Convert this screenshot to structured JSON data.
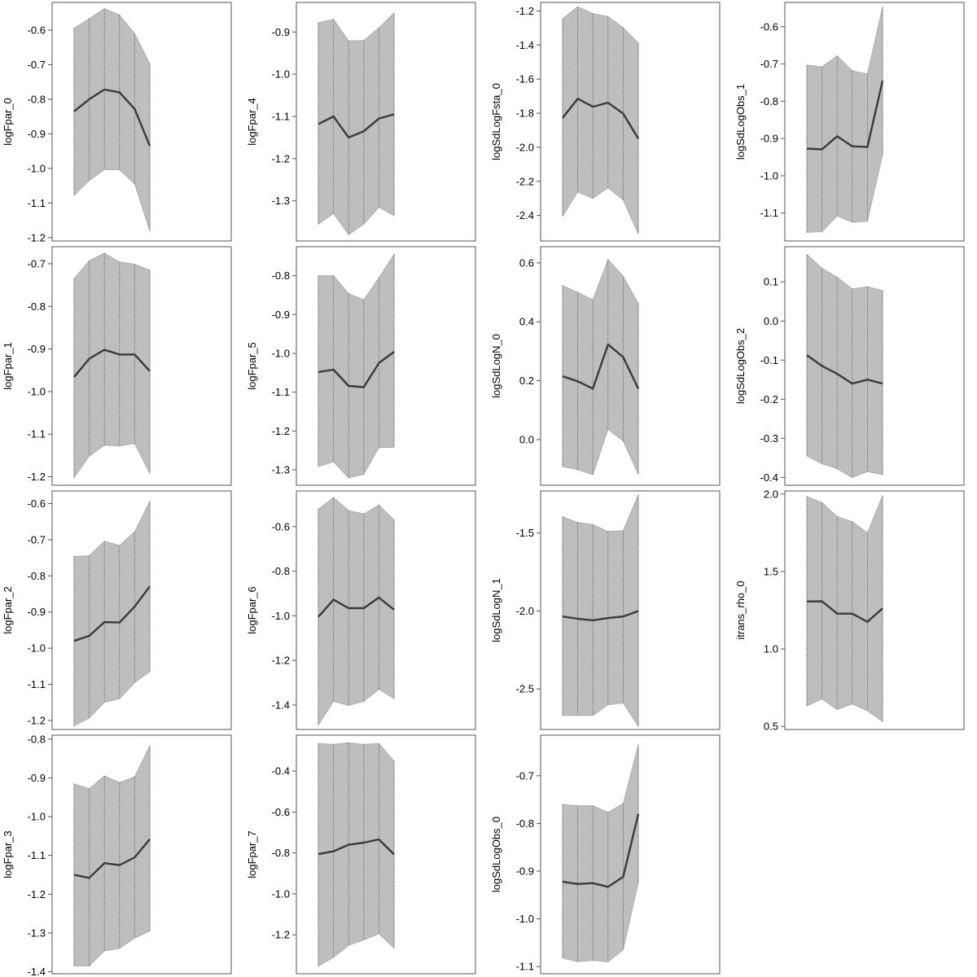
{
  "colors": {
    "band": "#bebebe",
    "band_edge": "#a8a8a8",
    "line": "#3a3a3a",
    "frame": "#555555",
    "ribbon": "#5a5a5a"
  },
  "chart_data": [
    {
      "type": "line",
      "ylabel": "logFpar_0",
      "x": [
        1,
        2,
        3,
        4,
        5,
        6
      ],
      "mean": [
        -0.835,
        -0.8,
        -0.772,
        -0.78,
        -0.828,
        -0.935
      ],
      "upper": [
        -0.595,
        -0.567,
        -0.538,
        -0.556,
        -0.61,
        -0.697
      ],
      "lower": [
        -1.078,
        -1.035,
        -1.004,
        -1.004,
        -1.045,
        -1.182
      ],
      "yticks": [
        -0.6,
        -0.7,
        -0.8,
        -0.9,
        -1.0,
        -1.1,
        -1.2
      ],
      "tick_labels": [
        "-0.6",
        "-0.7",
        "-0.8",
        "-0.9",
        "-1.0",
        "-1.1",
        "-1.2"
      ],
      "ylim": [
        -1.21,
        -0.52
      ]
    },
    {
      "type": "line",
      "ylabel": "logFpar_4",
      "x": [
        1,
        2,
        3,
        4,
        5,
        6
      ],
      "mean": [
        -1.118,
        -1.1,
        -1.15,
        -1.135,
        -1.105,
        -1.095
      ],
      "upper": [
        -0.878,
        -0.87,
        -0.921,
        -0.92,
        -0.89,
        -0.855
      ],
      "lower": [
        -1.355,
        -1.33,
        -1.38,
        -1.355,
        -1.315,
        -1.335
      ],
      "yticks": [
        -0.9,
        -1.0,
        -1.1,
        -1.2,
        -1.3
      ],
      "tick_labels": [
        "-0.9",
        "-1.0",
        "-1.1",
        "-1.2",
        "-1.3"
      ],
      "ylim": [
        -1.395,
        -0.83
      ]
    },
    {
      "type": "line",
      "ylabel": "logSdLogFsta_0",
      "x": [
        1,
        2,
        3,
        4,
        5,
        6
      ],
      "mean": [
        -1.828,
        -1.715,
        -1.762,
        -1.738,
        -1.802,
        -1.95
      ],
      "upper": [
        -1.245,
        -1.175,
        -1.215,
        -1.232,
        -1.298,
        -1.388
      ],
      "lower": [
        -2.405,
        -2.262,
        -2.3,
        -2.238,
        -2.31,
        -2.508
      ],
      "yticks": [
        -1.2,
        -1.4,
        -1.6,
        -1.8,
        -2.0,
        -2.2,
        -2.4
      ],
      "tick_labels": [
        "-1.2",
        "-1.4",
        "-1.6",
        "-1.8",
        "-2.0",
        "-2.2",
        "-2.4"
      ],
      "ylim": [
        -2.55,
        -1.15
      ]
    },
    {
      "type": "line",
      "ylabel": "logSdLogObs_1",
      "x": [
        1,
        2,
        3,
        4,
        5,
        6
      ],
      "mean": [
        -0.927,
        -0.929,
        -0.894,
        -0.921,
        -0.923,
        -0.745
      ],
      "upper": [
        -0.703,
        -0.708,
        -0.678,
        -0.718,
        -0.727,
        -0.547
      ],
      "lower": [
        -1.152,
        -1.15,
        -1.108,
        -1.125,
        -1.122,
        -0.945
      ],
      "yticks": [
        -0.6,
        -0.7,
        -0.8,
        -0.9,
        -1.0,
        -1.1
      ],
      "tick_labels": [
        "-0.6",
        "-0.7",
        "-0.8",
        "-0.9",
        "-1.0",
        "-1.1"
      ],
      "ylim": [
        -1.175,
        -0.535
      ]
    },
    {
      "type": "line",
      "ylabel": "logFpar_1",
      "x": [
        1,
        2,
        3,
        4,
        5,
        6
      ],
      "mean": [
        -0.966,
        -0.923,
        -0.902,
        -0.913,
        -0.913,
        -0.952
      ],
      "upper": [
        -0.735,
        -0.693,
        -0.675,
        -0.696,
        -0.701,
        -0.715
      ],
      "lower": [
        -1.202,
        -1.152,
        -1.126,
        -1.128,
        -1.122,
        -1.192
      ],
      "yticks": [
        -0.7,
        -0.8,
        -0.9,
        -1.0,
        -1.1,
        -1.2
      ],
      "tick_labels": [
        "-0.7",
        "-0.8",
        "-0.9",
        "-1.0",
        "-1.1",
        "-1.2"
      ],
      "ylim": [
        -1.22,
        -0.66
      ]
    },
    {
      "type": "line",
      "ylabel": "logFpar_5",
      "x": [
        1,
        2,
        3,
        4,
        5,
        6
      ],
      "mean": [
        -1.048,
        -1.042,
        -1.084,
        -1.087,
        -1.025,
        -0.996
      ],
      "upper": [
        -0.8,
        -0.8,
        -0.846,
        -0.862,
        -0.805,
        -0.745
      ],
      "lower": [
        -1.292,
        -1.28,
        -1.321,
        -1.312,
        -1.243,
        -1.242
      ],
      "yticks": [
        -0.8,
        -0.9,
        -1.0,
        -1.1,
        -1.2,
        -1.3
      ],
      "tick_labels": [
        "-0.8",
        "-0.9",
        "-1.0",
        "-1.1",
        "-1.2",
        "-1.3"
      ],
      "ylim": [
        -1.34,
        -0.725
      ]
    },
    {
      "type": "line",
      "ylabel": "logSdLogN_0",
      "x": [
        1,
        2,
        3,
        4,
        5,
        6
      ],
      "mean": [
        0.215,
        0.198,
        0.173,
        0.323,
        0.28,
        0.173
      ],
      "upper": [
        0.523,
        0.5,
        0.475,
        0.612,
        0.555,
        0.463
      ],
      "lower": [
        -0.092,
        -0.102,
        -0.12,
        0.035,
        -0.005,
        -0.118
      ],
      "yticks": [
        0.0,
        0.2,
        0.4,
        0.6
      ],
      "tick_labels": [
        "0.0",
        "0.2",
        "0.4",
        "0.6"
      ],
      "ylim": [
        -0.155,
        0.655
      ]
    },
    {
      "type": "line",
      "ylabel": "logSdLogObs_2",
      "x": [
        1,
        2,
        3,
        4,
        5,
        6
      ],
      "mean": [
        -0.087,
        -0.115,
        -0.135,
        -0.16,
        -0.15,
        -0.16
      ],
      "upper": [
        0.17,
        0.135,
        0.112,
        0.082,
        0.088,
        0.078
      ],
      "lower": [
        -0.345,
        -0.365,
        -0.378,
        -0.4,
        -0.385,
        -0.393
      ],
      "yticks": [
        0.1,
        0.0,
        -0.1,
        -0.2,
        -0.3,
        -0.4
      ],
      "tick_labels": [
        "0.1",
        "0.0",
        "-0.1",
        "-0.2",
        "-0.3",
        "-0.4"
      ],
      "ylim": [
        -0.42,
        0.19
      ]
    },
    {
      "type": "line",
      "ylabel": "logFpar_2",
      "x": [
        1,
        2,
        3,
        4,
        5,
        6
      ],
      "mean": [
        -0.98,
        -0.966,
        -0.928,
        -0.929,
        -0.885,
        -0.829
      ],
      "upper": [
        -0.746,
        -0.744,
        -0.704,
        -0.716,
        -0.678,
        -0.593
      ],
      "lower": [
        -1.215,
        -1.193,
        -1.15,
        -1.14,
        -1.095,
        -1.065
      ],
      "yticks": [
        -0.6,
        -0.7,
        -0.8,
        -0.9,
        -1.0,
        -1.1,
        -1.2
      ],
      "tick_labels": [
        "-0.6",
        "-0.7",
        "-0.8",
        "-0.9",
        "-1.0",
        "-1.1",
        "-1.2"
      ],
      "ylim": [
        -1.225,
        -0.565
      ]
    },
    {
      "type": "line",
      "ylabel": "logFpar_6",
      "x": [
        1,
        2,
        3,
        4,
        5,
        6
      ],
      "mean": [
        -1.005,
        -0.928,
        -0.966,
        -0.966,
        -0.918,
        -0.973
      ],
      "upper": [
        -0.522,
        -0.47,
        -0.528,
        -0.543,
        -0.503,
        -0.57
      ],
      "lower": [
        -1.49,
        -1.384,
        -1.402,
        -1.384,
        -1.33,
        -1.372
      ],
      "yticks": [
        -0.6,
        -0.8,
        -1.0,
        -1.2,
        -1.4
      ],
      "tick_labels": [
        "-0.6",
        "-0.8",
        "-1.0",
        "-1.2",
        "-1.4"
      ],
      "ylim": [
        -1.51,
        -0.44
      ]
    },
    {
      "type": "line",
      "ylabel": "logSdLogN_1",
      "x": [
        1,
        2,
        3,
        4,
        5,
        6
      ],
      "mean": [
        -2.035,
        -2.05,
        -2.06,
        -2.045,
        -2.035,
        -2.0
      ],
      "upper": [
        -1.395,
        -1.432,
        -1.446,
        -1.49,
        -1.485,
        -1.255
      ],
      "lower": [
        -2.67,
        -2.67,
        -2.67,
        -2.602,
        -2.59,
        -2.74
      ],
      "yticks": [
        -1.5,
        -2.0,
        -2.5
      ],
      "tick_labels": [
        "-1.5",
        "-2.0",
        "-2.5"
      ],
      "ylim": [
        -2.76,
        -1.23
      ]
    },
    {
      "type": "line",
      "ylabel": "itrans_rho_0",
      "x": [
        1,
        2,
        3,
        4,
        5,
        6
      ],
      "mean": [
        1.306,
        1.308,
        1.228,
        1.228,
        1.175,
        1.262
      ],
      "upper": [
        1.985,
        1.945,
        1.855,
        1.822,
        1.75,
        1.99
      ],
      "lower": [
        0.632,
        0.678,
        0.608,
        0.645,
        0.6,
        0.532
      ],
      "yticks": [
        2.0,
        1.5,
        1.0,
        0.5
      ],
      "tick_labels": [
        "2.0",
        "1.5",
        "1.0",
        "0.5"
      ],
      "ylim": [
        0.48,
        2.02
      ]
    },
    {
      "type": "line",
      "ylabel": "logFpar_3",
      "x": [
        1,
        2,
        3,
        4,
        5,
        6
      ],
      "mean": [
        -1.15,
        -1.158,
        -1.12,
        -1.125,
        -1.105,
        -1.058
      ],
      "upper": [
        -0.915,
        -0.928,
        -0.895,
        -0.912,
        -0.897,
        -0.817
      ],
      "lower": [
        -1.385,
        -1.385,
        -1.346,
        -1.34,
        -1.313,
        -1.295
      ],
      "yticks": [
        -0.8,
        -0.9,
        -1.0,
        -1.1,
        -1.2,
        -1.3,
        -1.4
      ],
      "tick_labels": [
        "-0.8",
        "-0.9",
        "-1.0",
        "-1.1",
        "-1.2",
        "-1.3",
        "-1.4"
      ],
      "ylim": [
        -1.405,
        -0.79
      ]
    },
    {
      "type": "line",
      "ylabel": "logFpar_7",
      "x": [
        1,
        2,
        3,
        4,
        5,
        6
      ],
      "mean": [
        -0.806,
        -0.792,
        -0.76,
        -0.75,
        -0.734,
        -0.807
      ],
      "upper": [
        -0.265,
        -0.27,
        -0.262,
        -0.27,
        -0.265,
        -0.352
      ],
      "lower": [
        -1.353,
        -1.31,
        -1.252,
        -1.225,
        -1.195,
        -1.265
      ],
      "yticks": [
        -0.4,
        -0.6,
        -0.8,
        -1.0,
        -1.2
      ],
      "tick_labels": [
        "-0.4",
        "-0.6",
        "-0.8",
        "-1.0",
        "-1.2"
      ],
      "ylim": [
        -1.39,
        -0.225
      ]
    },
    {
      "type": "line",
      "ylabel": "logSdLogObs_0",
      "x": [
        1,
        2,
        3,
        4,
        5,
        6
      ],
      "mean": [
        -0.922,
        -0.927,
        -0.925,
        -0.933,
        -0.912,
        -0.78
      ],
      "upper": [
        -0.76,
        -0.763,
        -0.763,
        -0.777,
        -0.758,
        -0.635
      ],
      "lower": [
        -1.082,
        -1.09,
        -1.087,
        -1.09,
        -1.065,
        -0.924
      ],
      "yticks": [
        -0.7,
        -0.8,
        -0.9,
        -1.0,
        -1.1
      ],
      "tick_labels": [
        "-0.7",
        "-0.8",
        "-0.9",
        "-1.0",
        "-1.1"
      ],
      "ylim": [
        -1.115,
        -0.615
      ]
    }
  ]
}
